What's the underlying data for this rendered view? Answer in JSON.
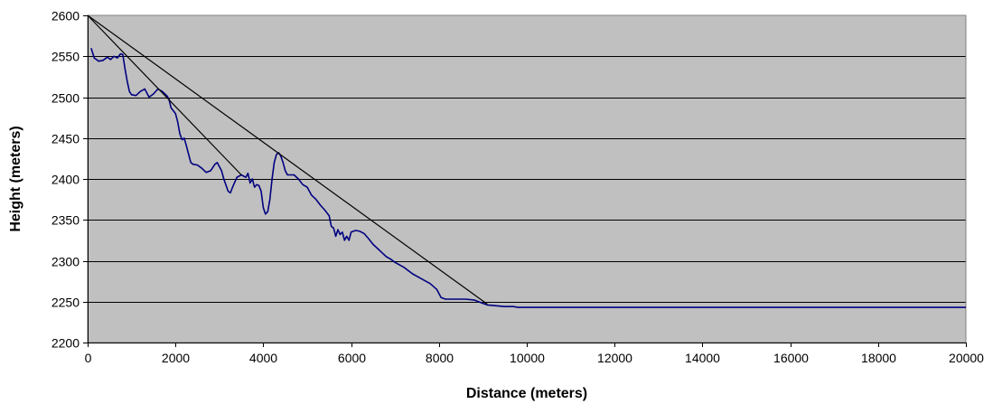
{
  "chart_data": {
    "type": "line",
    "title": "",
    "xlabel": "Distance (meters)",
    "ylabel": "Height (meters)",
    "xlim": [
      0,
      20000
    ],
    "ylim": [
      2200,
      2600
    ],
    "x_ticks": [
      0,
      2000,
      4000,
      6000,
      8000,
      10000,
      12000,
      14000,
      16000,
      18000,
      20000
    ],
    "y_ticks": [
      2200,
      2250,
      2300,
      2350,
      2400,
      2450,
      2500,
      2550,
      2600
    ],
    "grid": "horizontal",
    "plot_background": "#c0c0c0",
    "legend": "none",
    "series": [
      {
        "color": "#000080",
        "points": [
          [
            80,
            2560
          ],
          [
            150,
            2548
          ],
          [
            250,
            2544
          ],
          [
            350,
            2545
          ],
          [
            450,
            2549
          ],
          [
            520,
            2546
          ],
          [
            600,
            2550
          ],
          [
            680,
            2548
          ],
          [
            750,
            2553
          ],
          [
            800,
            2552
          ],
          [
            850,
            2535
          ],
          [
            900,
            2520
          ],
          [
            950,
            2507
          ],
          [
            1000,
            2503
          ],
          [
            1100,
            2502
          ],
          [
            1200,
            2507
          ],
          [
            1300,
            2510
          ],
          [
            1350,
            2505
          ],
          [
            1400,
            2500
          ],
          [
            1500,
            2504
          ],
          [
            1600,
            2510
          ],
          [
            1700,
            2507
          ],
          [
            1800,
            2502
          ],
          [
            1850,
            2498
          ],
          [
            1900,
            2487
          ],
          [
            2000,
            2480
          ],
          [
            2050,
            2470
          ],
          [
            2100,
            2455
          ],
          [
            2150,
            2448
          ],
          [
            2200,
            2450
          ],
          [
            2250,
            2440
          ],
          [
            2300,
            2430
          ],
          [
            2350,
            2420
          ],
          [
            2400,
            2418
          ],
          [
            2500,
            2417
          ],
          [
            2600,
            2413
          ],
          [
            2700,
            2408
          ],
          [
            2800,
            2410
          ],
          [
            2900,
            2418
          ],
          [
            2950,
            2420
          ],
          [
            3000,
            2415
          ],
          [
            3050,
            2410
          ],
          [
            3100,
            2400
          ],
          [
            3200,
            2385
          ],
          [
            3250,
            2383
          ],
          [
            3300,
            2390
          ],
          [
            3400,
            2402
          ],
          [
            3500,
            2405
          ],
          [
            3600,
            2402
          ],
          [
            3650,
            2407
          ],
          [
            3700,
            2395
          ],
          [
            3750,
            2400
          ],
          [
            3800,
            2390
          ],
          [
            3850,
            2393
          ],
          [
            3900,
            2392
          ],
          [
            3950,
            2385
          ],
          [
            4000,
            2365
          ],
          [
            4050,
            2357
          ],
          [
            4100,
            2360
          ],
          [
            4150,
            2375
          ],
          [
            4200,
            2400
          ],
          [
            4250,
            2420
          ],
          [
            4300,
            2430
          ],
          [
            4350,
            2432
          ],
          [
            4400,
            2428
          ],
          [
            4450,
            2420
          ],
          [
            4500,
            2410
          ],
          [
            4550,
            2405
          ],
          [
            4600,
            2405
          ],
          [
            4700,
            2405
          ],
          [
            4800,
            2400
          ],
          [
            4900,
            2393
          ],
          [
            5000,
            2390
          ],
          [
            5100,
            2380
          ],
          [
            5200,
            2375
          ],
          [
            5300,
            2368
          ],
          [
            5400,
            2362
          ],
          [
            5500,
            2355
          ],
          [
            5550,
            2342
          ],
          [
            5600,
            2340
          ],
          [
            5650,
            2330
          ],
          [
            5700,
            2338
          ],
          [
            5750,
            2332
          ],
          [
            5800,
            2335
          ],
          [
            5850,
            2325
          ],
          [
            5900,
            2330
          ],
          [
            5950,
            2325
          ],
          [
            6000,
            2335
          ],
          [
            6100,
            2337
          ],
          [
            6200,
            2336
          ],
          [
            6300,
            2333
          ],
          [
            6400,
            2327
          ],
          [
            6500,
            2320
          ],
          [
            6600,
            2315
          ],
          [
            6700,
            2310
          ],
          [
            6800,
            2305
          ],
          [
            6900,
            2302
          ],
          [
            7000,
            2298
          ],
          [
            7200,
            2292
          ],
          [
            7400,
            2284
          ],
          [
            7600,
            2278
          ],
          [
            7800,
            2272
          ],
          [
            7950,
            2265
          ],
          [
            8050,
            2255
          ],
          [
            8150,
            2253
          ],
          [
            8400,
            2253
          ],
          [
            8600,
            2253
          ],
          [
            8800,
            2252
          ],
          [
            9000,
            2248
          ],
          [
            9100,
            2246
          ],
          [
            9300,
            2245
          ],
          [
            9500,
            2244
          ],
          [
            9700,
            2244
          ],
          [
            9800,
            2243
          ],
          [
            10500,
            2243
          ],
          [
            12000,
            2243
          ],
          [
            14000,
            2243
          ],
          [
            16000,
            2243
          ],
          [
            18000,
            2243
          ],
          [
            20000,
            2243
          ]
        ]
      },
      {
        "color": "#000000",
        "points": [
          [
            0,
            2600
          ],
          [
            3500,
            2405
          ]
        ]
      },
      {
        "color": "#000000",
        "points": [
          [
            0,
            2600
          ],
          [
            9100,
            2247
          ]
        ]
      }
    ]
  }
}
